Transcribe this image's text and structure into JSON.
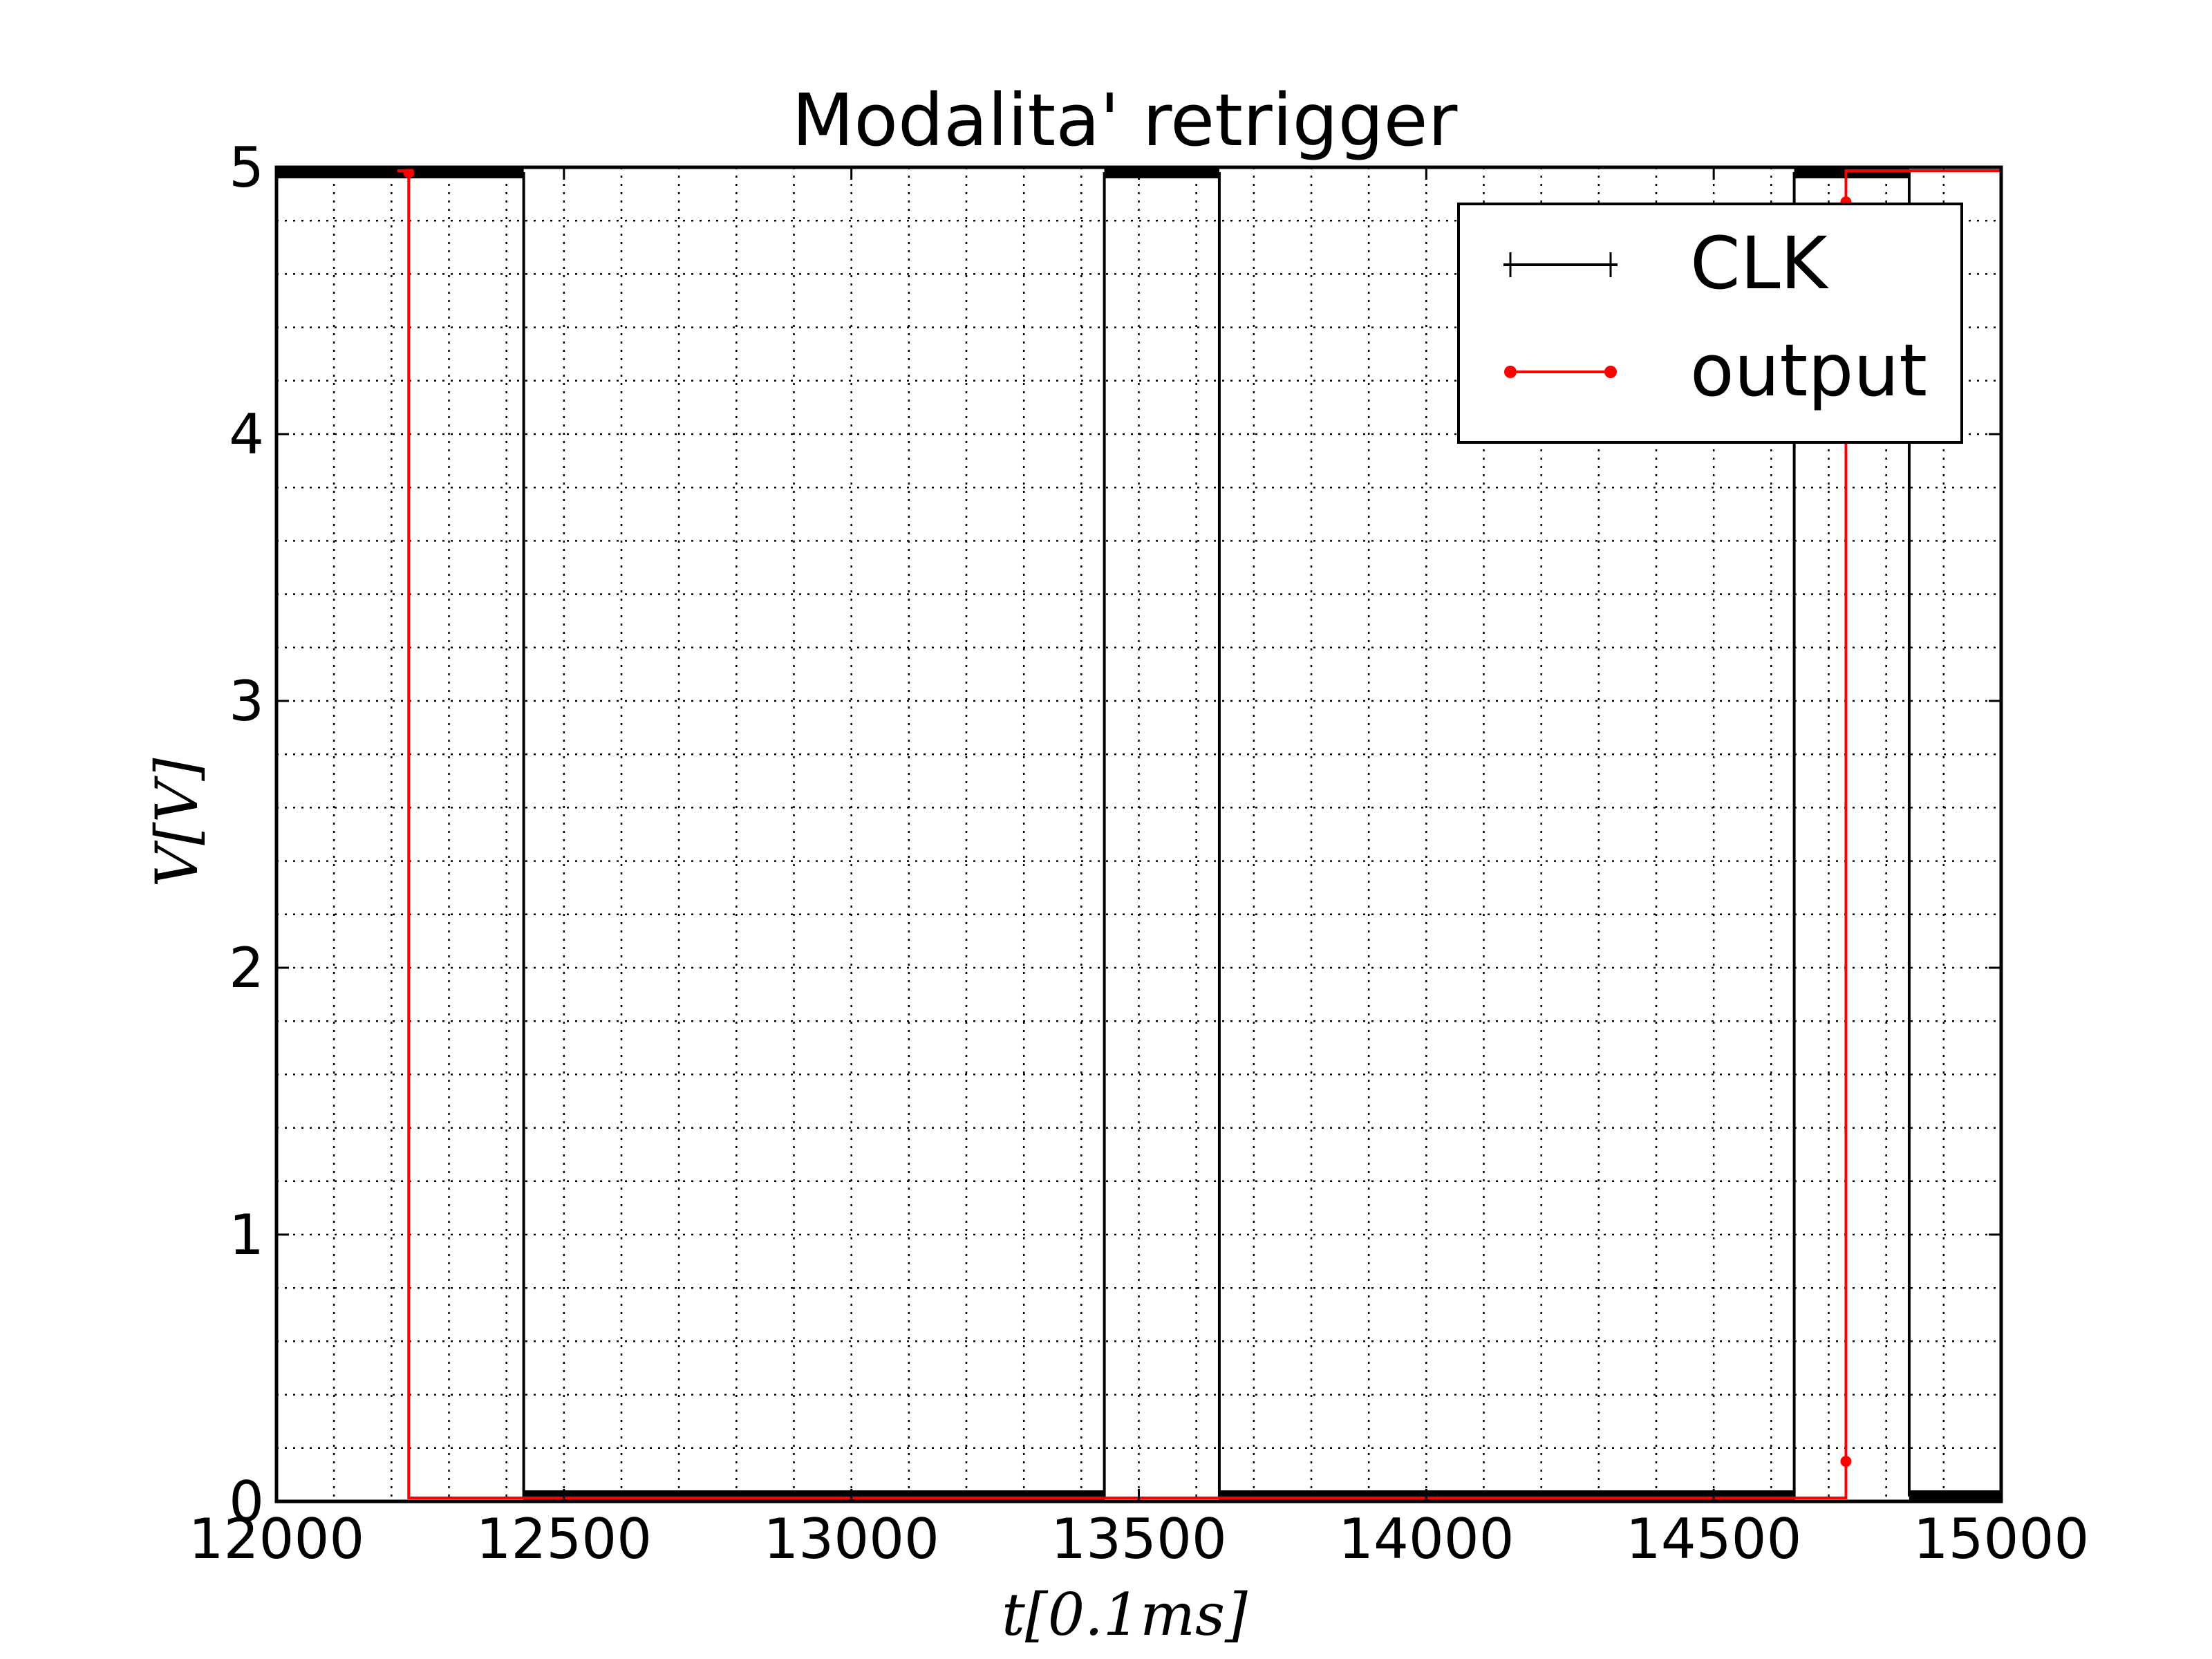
{
  "chart_data": {
    "type": "line",
    "title": "Modalita' retrigger",
    "xlabel": "t[0.1ms]",
    "ylabel": "V[V]",
    "xlim": [
      12000,
      15000
    ],
    "ylim": [
      0,
      5
    ],
    "x_ticks": [
      "12000",
      "12500",
      "13000",
      "13500",
      "14000",
      "14500",
      "15000"
    ],
    "y_ticks": [
      "0",
      "1",
      "2",
      "3",
      "4",
      "5"
    ],
    "grid": true,
    "legend_position": "upper-right",
    "series": [
      {
        "name": "CLK",
        "color": "#000000",
        "marker": "plus",
        "x": [
          12000,
          12430,
          12430,
          13440,
          13440,
          13640,
          13640,
          14640,
          14640,
          14840,
          14840,
          15000
        ],
        "y": [
          5,
          5,
          0,
          0,
          5,
          5,
          0,
          0,
          5,
          5,
          0,
          0
        ]
      },
      {
        "name": "output",
        "color": "#ff0000",
        "marker": "dot",
        "x": [
          12210,
          12230,
          12230,
          14730,
          14730,
          15000
        ],
        "y": [
          5,
          5,
          0,
          0,
          5,
          5
        ]
      }
    ]
  }
}
